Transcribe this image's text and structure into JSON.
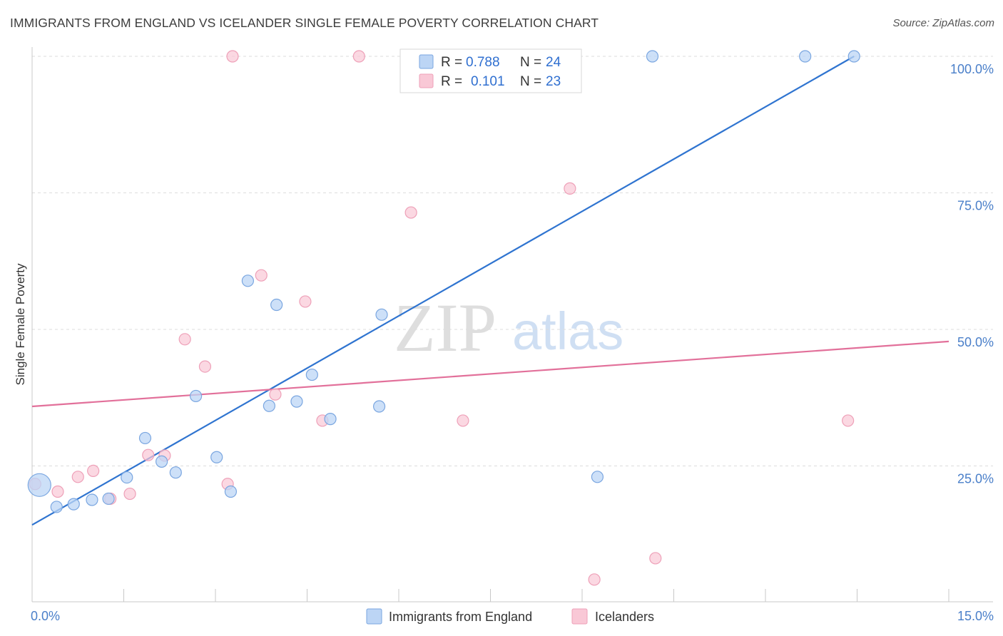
{
  "header": {
    "title": "IMMIGRANTS FROM ENGLAND VS ICELANDER SINGLE FEMALE POVERTY CORRELATION CHART",
    "source": "Source: ZipAtlas.com"
  },
  "watermark": {
    "zip": "ZIP",
    "atlas": "atlas"
  },
  "legend_box": {
    "rows": [
      {
        "r_label": "R = ",
        "r_value": "0.788",
        "n_label": "N = ",
        "n_value": "24"
      },
      {
        "r_label": "R = ",
        "r_value": "0.101",
        "n_label": "N = ",
        "n_value": "23"
      }
    ]
  },
  "colors": {
    "blue_fill": "#bcd5f5",
    "blue_stroke": "#7aa6e0",
    "blue_line": "#2f74d0",
    "pink_fill": "#f9c8d6",
    "pink_stroke": "#eea0b8",
    "pink_line": "#e2709a",
    "grid": "#dcdcdc",
    "tick_text": "#4a7fc9"
  },
  "chart_data": {
    "type": "scatter",
    "title": "IMMIGRANTS FROM ENGLAND VS ICELANDER SINGLE FEMALE POVERTY CORRELATION CHART",
    "xlabel": "",
    "ylabel": "Single Female Poverty",
    "xlim": [
      0,
      15
    ],
    "ylim": [
      0,
      104
    ],
    "x_tick_labels": [
      {
        "value": 0,
        "label": "0.0%"
      },
      {
        "value": 15,
        "label": "15.0%"
      }
    ],
    "y_tick_labels": [
      {
        "value": 25,
        "label": "25.0%"
      },
      {
        "value": 50,
        "label": "50.0%"
      },
      {
        "value": 75,
        "label": "75.0%"
      },
      {
        "value": 100,
        "label": "100.0%"
      }
    ],
    "grid": true,
    "legend_position": "bottom-center",
    "series": [
      {
        "name": "Immigrants from England",
        "color_key": "blue",
        "r": 0.788,
        "n": 24,
        "trend": {
          "x0": 0,
          "y0": 14.2,
          "x1": 13.45,
          "y1": 100
        },
        "points": [
          {
            "x": 0.12,
            "y": 21.5,
            "big": true
          },
          {
            "x": 0.4,
            "y": 17.5
          },
          {
            "x": 0.68,
            "y": 18.0
          },
          {
            "x": 0.98,
            "y": 18.8
          },
          {
            "x": 1.25,
            "y": 19.0
          },
          {
            "x": 1.55,
            "y": 22.9
          },
          {
            "x": 1.85,
            "y": 30.1
          },
          {
            "x": 2.12,
            "y": 25.8
          },
          {
            "x": 2.35,
            "y": 23.8
          },
          {
            "x": 2.68,
            "y": 37.8
          },
          {
            "x": 3.02,
            "y": 26.6
          },
          {
            "x": 3.25,
            "y": 20.3
          },
          {
            "x": 3.53,
            "y": 58.9
          },
          {
            "x": 3.88,
            "y": 36.0
          },
          {
            "x": 4.0,
            "y": 54.5
          },
          {
            "x": 4.33,
            "y": 36.8
          },
          {
            "x": 4.58,
            "y": 41.7
          },
          {
            "x": 4.88,
            "y": 33.6
          },
          {
            "x": 5.68,
            "y": 35.9
          },
          {
            "x": 5.72,
            "y": 52.7
          },
          {
            "x": 9.25,
            "y": 23.0
          },
          {
            "x": 10.15,
            "y": 100.0
          },
          {
            "x": 12.65,
            "y": 100.0
          },
          {
            "x": 13.45,
            "y": 100.0
          }
        ]
      },
      {
        "name": "Icelanders",
        "color_key": "pink",
        "r": 0.101,
        "n": 23,
        "trend": {
          "x0": 0,
          "y0": 35.9,
          "x1": 15,
          "y1": 47.8
        },
        "points": [
          {
            "x": 0.05,
            "y": 21.7
          },
          {
            "x": 0.42,
            "y": 20.3
          },
          {
            "x": 0.75,
            "y": 23.0
          },
          {
            "x": 1.0,
            "y": 24.1
          },
          {
            "x": 1.28,
            "y": 19.0
          },
          {
            "x": 1.6,
            "y": 19.9
          },
          {
            "x": 1.9,
            "y": 27.0
          },
          {
            "x": 2.17,
            "y": 26.9
          },
          {
            "x": 2.5,
            "y": 48.2
          },
          {
            "x": 2.83,
            "y": 43.2
          },
          {
            "x": 3.2,
            "y": 21.7
          },
          {
            "x": 3.28,
            "y": 100.0
          },
          {
            "x": 3.75,
            "y": 59.9
          },
          {
            "x": 3.98,
            "y": 38.1
          },
          {
            "x": 4.47,
            "y": 55.1
          },
          {
            "x": 4.75,
            "y": 33.3
          },
          {
            "x": 5.35,
            "y": 100.0
          },
          {
            "x": 6.2,
            "y": 71.4
          },
          {
            "x": 7.05,
            "y": 33.3
          },
          {
            "x": 8.8,
            "y": 75.8
          },
          {
            "x": 9.2,
            "y": 4.2
          },
          {
            "x": 10.2,
            "y": 8.1
          },
          {
            "x": 13.35,
            "y": 33.3
          }
        ]
      }
    ]
  }
}
